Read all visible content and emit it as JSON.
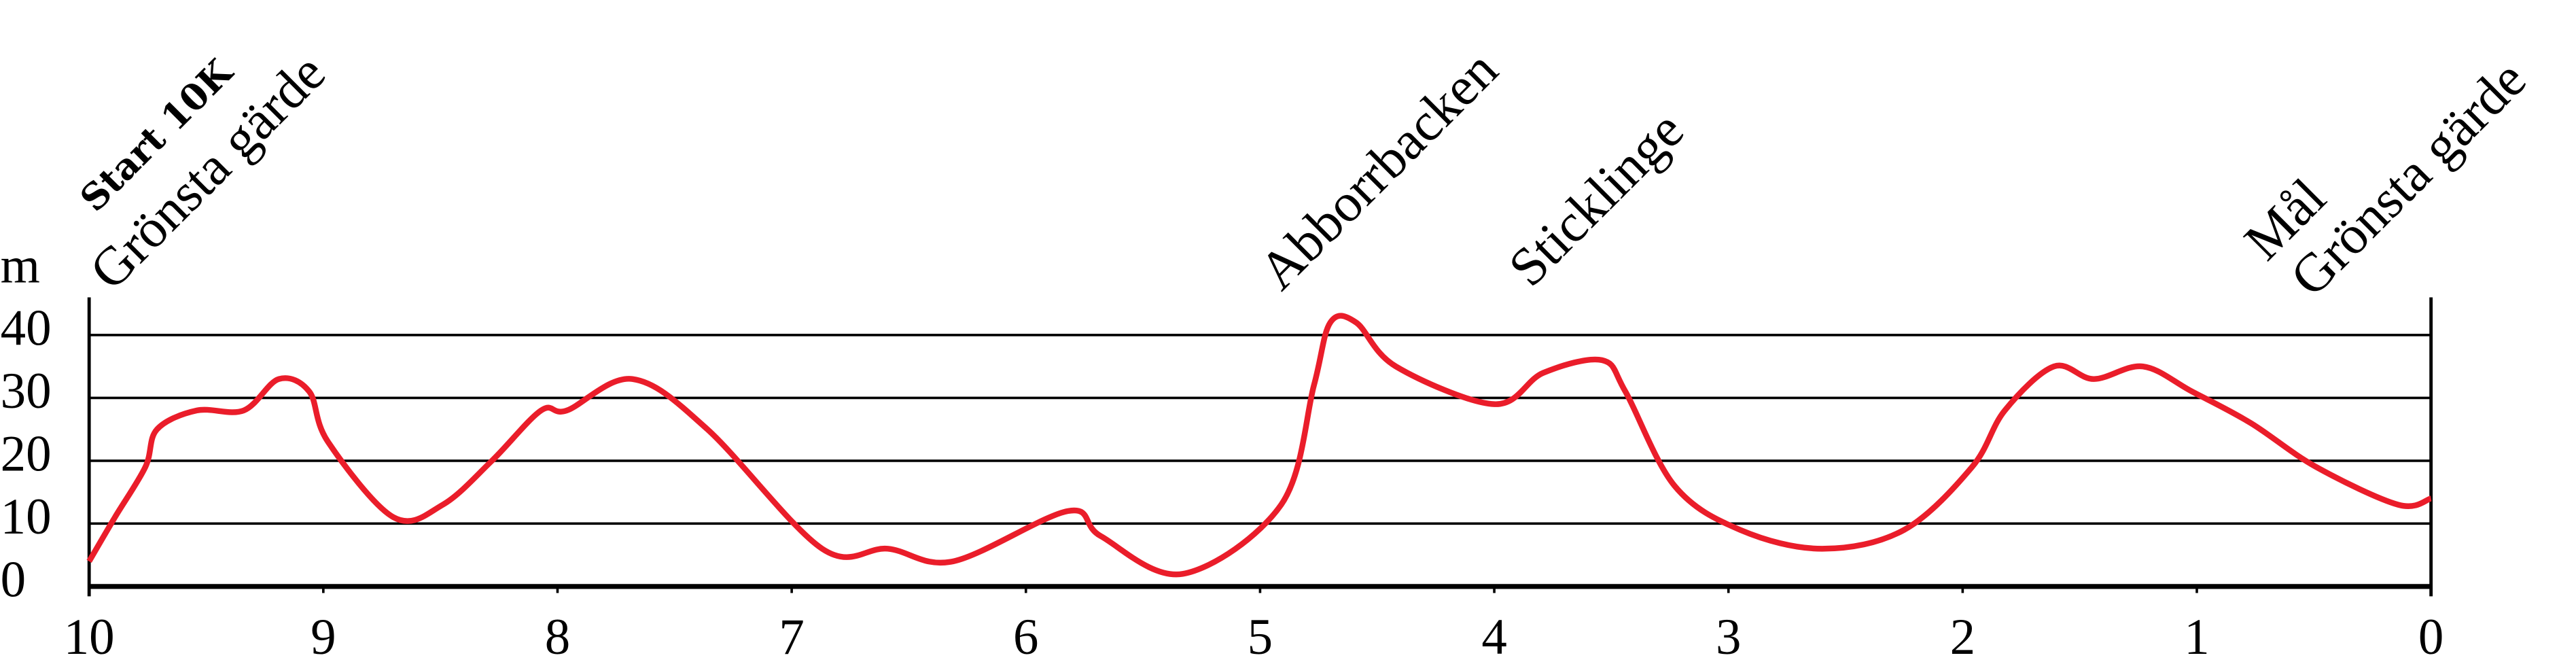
{
  "chart_data": {
    "type": "line",
    "y_label": "m",
    "annotations": [
      "Start 10K",
      "Grönsta gärde",
      "Abborrbacken",
      "Sticklinge",
      "Mål",
      "Grönsta gärde"
    ],
    "xlim": [
      10,
      0
    ],
    "ylim": [
      0,
      46
    ],
    "xticks": [
      10,
      9,
      8,
      7,
      6,
      5,
      4,
      3,
      2,
      1,
      0
    ],
    "yticks": [
      0,
      10,
      20,
      30,
      40
    ],
    "grid": true,
    "series": [
      {
        "color": "#ea1d2a",
        "x": [
          10,
          9.89,
          9.76,
          9.71,
          9.54,
          9.34,
          9.19,
          9.06,
          8.98,
          8.7,
          8.49,
          8.28,
          8.07,
          7.96,
          7.68,
          7.36,
          6.87,
          6.59,
          6.31,
          5.82,
          5.68,
          5.33,
          4.91,
          4.77,
          4.7,
          4.59,
          4.42,
          4.0,
          3.79,
          3.54,
          3.44,
          3.23,
          2.95,
          2.6,
          2.25,
          1.96,
          1.82,
          1.61,
          1.44,
          1.23,
          1.02,
          0.77,
          0.49,
          0.14,
          0
        ],
        "values": [
          4,
          11,
          19,
          25,
          28,
          28,
          33,
          31,
          23,
          11,
          13,
          20,
          28,
          28,
          33,
          25,
          6,
          6,
          4,
          12,
          8,
          2,
          13,
          32,
          42,
          42,
          35,
          29,
          34,
          36,
          31,
          16,
          9,
          6,
          9,
          19,
          28,
          35,
          33,
          35,
          31,
          26,
          19,
          13,
          14
        ]
      }
    ]
  }
}
